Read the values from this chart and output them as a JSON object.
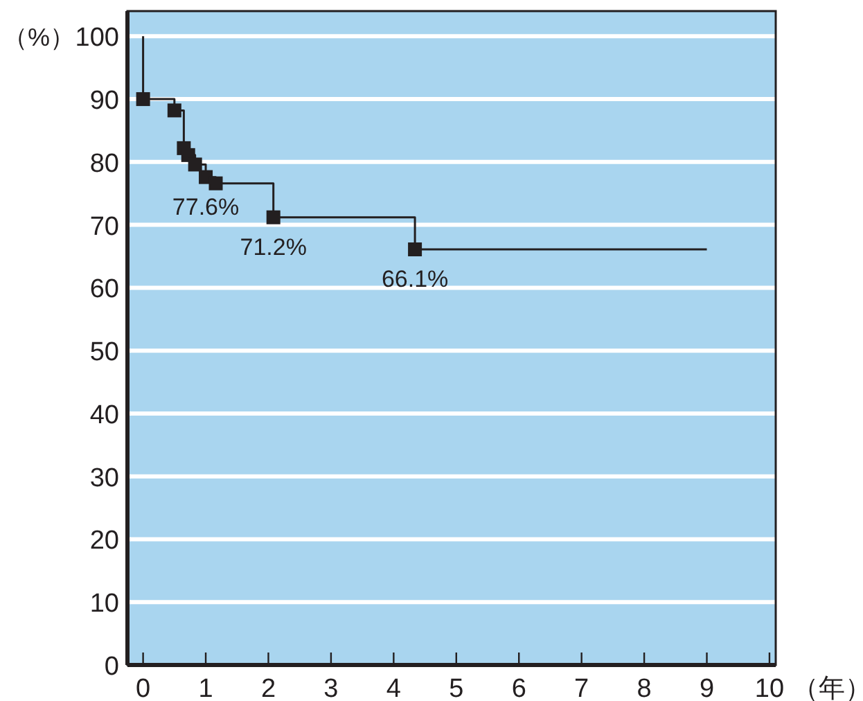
{
  "chart_data": {
    "type": "step",
    "xlabel": "（年）",
    "ylabel": "（%）",
    "xlim": [
      -0.25,
      10.1
    ],
    "ylim": [
      0,
      104
    ],
    "xticks": [
      0,
      1,
      2,
      3,
      4,
      5,
      6,
      7,
      8,
      9,
      10
    ],
    "yticks": [
      0,
      10,
      20,
      30,
      40,
      50,
      60,
      70,
      80,
      90,
      100
    ],
    "grid": "y",
    "series": [
      {
        "color": "#231f20",
        "x": [
          0,
          0,
          0.5,
          0.65,
          0.72,
          0.83,
          1.0,
          1.16,
          2.08,
          4.34,
          9.0
        ],
        "values": [
          100,
          90,
          88.2,
          82.2,
          81.1,
          79.6,
          77.6,
          76.6,
          71.2,
          66.1,
          66.1
        ]
      },
      {
        "type": "scatter",
        "marker": "square",
        "color": "#231f20",
        "x": [
          0,
          0.5,
          0.65,
          0.72,
          0.83,
          1.0,
          1.16,
          2.08,
          4.34
        ],
        "values": [
          90,
          88.2,
          82.2,
          81.1,
          79.6,
          77.6,
          76.6,
          71.2,
          66.1
        ]
      }
    ],
    "annotations": [
      {
        "text": "77.6%",
        "x": 1.0,
        "y": 77.6
      },
      {
        "text": "71.2%",
        "x": 2.08,
        "y": 71.2
      },
      {
        "text": "66.1%",
        "x": 4.34,
        "y": 66.1
      }
    ]
  }
}
